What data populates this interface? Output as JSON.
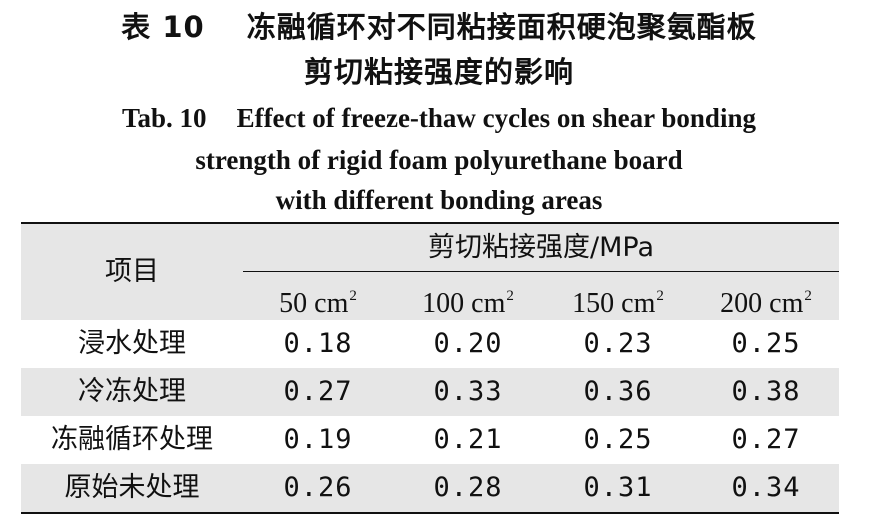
{
  "caption_cn": {
    "label": "表 10",
    "line1": "冻融循环对不同粘接面积硬泡聚氨酯板",
    "line2": "剪切粘接强度的影响"
  },
  "caption_en": {
    "label": "Tab. 10",
    "line1": "Effect of freeze-thaw cycles on shear bonding",
    "line2": "strength of rigid foam polyurethane board",
    "line3": "with different bonding areas"
  },
  "table": {
    "row_header": "项目",
    "group_header": "剪切粘接强度/MPa",
    "columns": [
      {
        "value": "50",
        "unit": "cm",
        "exp": "2"
      },
      {
        "value": "100",
        "unit": "cm",
        "exp": "2"
      },
      {
        "value": "150",
        "unit": "cm",
        "exp": "2"
      },
      {
        "value": "200",
        "unit": "cm",
        "exp": "2"
      }
    ],
    "rows": [
      {
        "label": "浸水处理",
        "values": [
          "0.18",
          "0.20",
          "0.23",
          "0.25"
        ]
      },
      {
        "label": "冷冻处理",
        "values": [
          "0.27",
          "0.33",
          "0.36",
          "0.38"
        ]
      },
      {
        "label": "冻融循环处理",
        "values": [
          "0.19",
          "0.21",
          "0.25",
          "0.27"
        ]
      },
      {
        "label": "原始未处理",
        "values": [
          "0.26",
          "0.28",
          "0.31",
          "0.34"
        ]
      }
    ]
  },
  "colors": {
    "shade": "#e6e6e6",
    "rule": "#111111"
  }
}
